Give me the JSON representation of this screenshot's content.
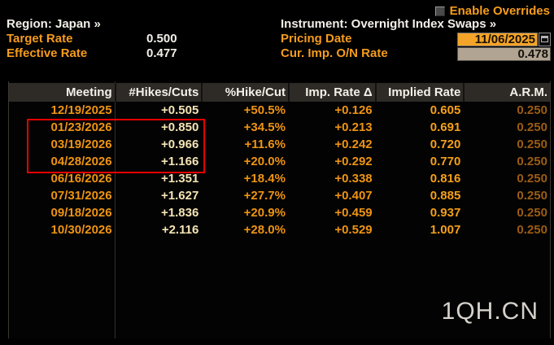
{
  "header": {
    "enable_overrides_label": "Enable Overrides",
    "region_line": "Region: Japan »",
    "instrument_line": "Instrument: Overnight Index Swaps »",
    "target_rate_label": "Target Rate",
    "target_rate_value": "0.500",
    "effective_rate_label": "Effective Rate",
    "effective_rate_value": "0.477",
    "pricing_date_label": "Pricing Date",
    "pricing_date_value": "11/06/2025",
    "cur_imp_on_rate_label": "Cur. Imp. O/N Rate",
    "cur_imp_on_rate_value": "0.478",
    "icons": {
      "calendar": "calendar-icon",
      "checkbox": "checkbox-unchecked"
    }
  },
  "table": {
    "columns": [
      "Meeting",
      "#Hikes/Cuts",
      "%Hike/Cut",
      "Imp. Rate Δ",
      "Implied Rate",
      "A.R.M."
    ],
    "rows": [
      [
        "12/19/2025",
        "+0.505",
        "+50.5%",
        "+0.126",
        "0.605",
        "0.250"
      ],
      [
        "01/23/2026",
        "+0.850",
        "+34.5%",
        "+0.213",
        "0.691",
        "0.250"
      ],
      [
        "03/19/2026",
        "+0.966",
        "+11.6%",
        "+0.242",
        "0.720",
        "0.250"
      ],
      [
        "04/28/2026",
        "+1.166",
        "+20.0%",
        "+0.292",
        "0.770",
        "0.250"
      ],
      [
        "06/16/2026",
        "+1.351",
        "+18.4%",
        "+0.338",
        "0.816",
        "0.250"
      ],
      [
        "07/31/2026",
        "+1.627",
        "+27.7%",
        "+0.407",
        "0.885",
        "0.250"
      ],
      [
        "09/18/2026",
        "+1.836",
        "+20.9%",
        "+0.459",
        "0.937",
        "0.250"
      ],
      [
        "10/30/2026",
        "+2.116",
        "+28.0%",
        "+0.529",
        "1.007",
        "0.250"
      ]
    ],
    "highlight": {
      "meetings": [
        "01/23/2026",
        "03/19/2026",
        "04/28/2026"
      ],
      "color": "#e60000"
    }
  },
  "watermark": "1QH.CN",
  "colors": {
    "background": "#000000",
    "amber_label": "#f59c1d",
    "white_text": "#f2efe8",
    "table_header_bg": "#2e2b27",
    "date_text": "#ee9412",
    "hikes_text": "#f4e4b4",
    "implied_text": "#f5a019",
    "arm_text": "#9c5c12",
    "pricing_field_bg": "#f4a428",
    "cur_imp_field_bg": "#b1a492",
    "highlight_red": "#e60000"
  }
}
